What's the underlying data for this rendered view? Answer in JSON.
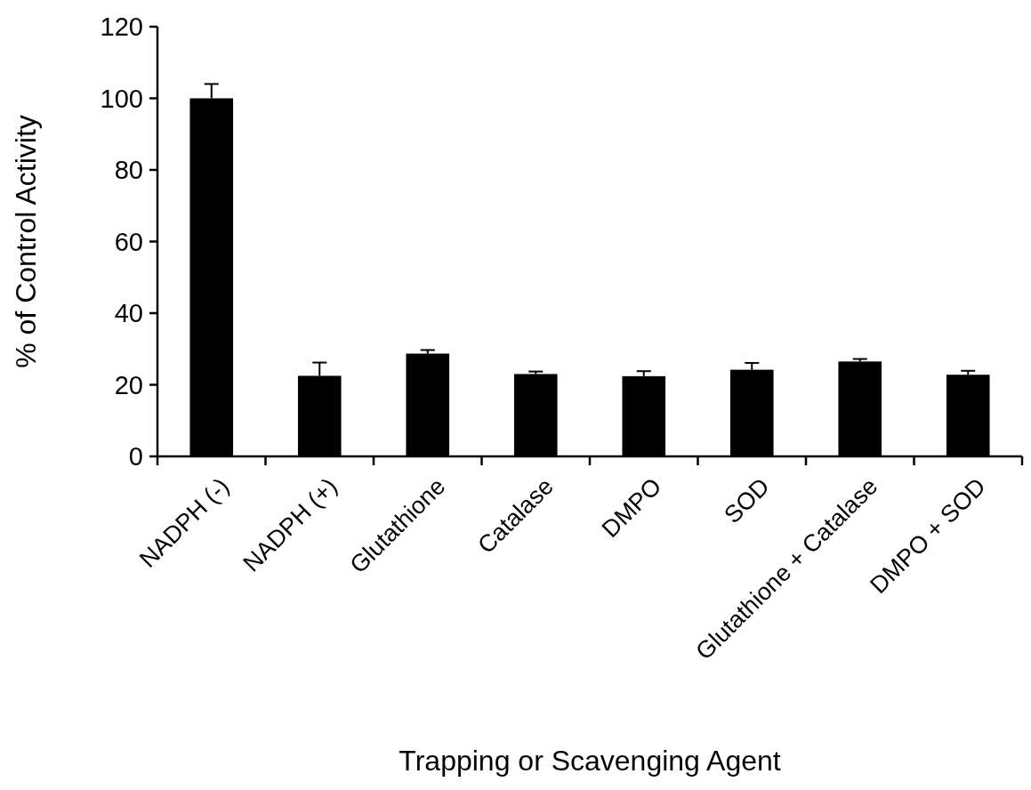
{
  "chart_data": {
    "type": "bar",
    "xlabel": "Trapping or Scavenging Agent",
    "ylabel": "% of Control Activity",
    "categories": [
      "NADPH (-)",
      "NADPH (+)",
      "Glutathione",
      "Catalase",
      "DMPO",
      "SOD",
      "Glutathione + Catalase",
      "DMPO + SOD"
    ],
    "values": [
      100,
      22.5,
      28.7,
      23.0,
      22.4,
      24.2,
      26.5,
      22.8
    ],
    "errors": [
      4,
      3.7,
      1,
      0.7,
      1.4,
      1.9,
      0.7,
      1.1
    ],
    "color": "#000000",
    "ylim": [
      0,
      120
    ],
    "yticks": [
      0,
      20,
      40,
      60,
      80,
      100,
      120
    ],
    "grid": false
  }
}
